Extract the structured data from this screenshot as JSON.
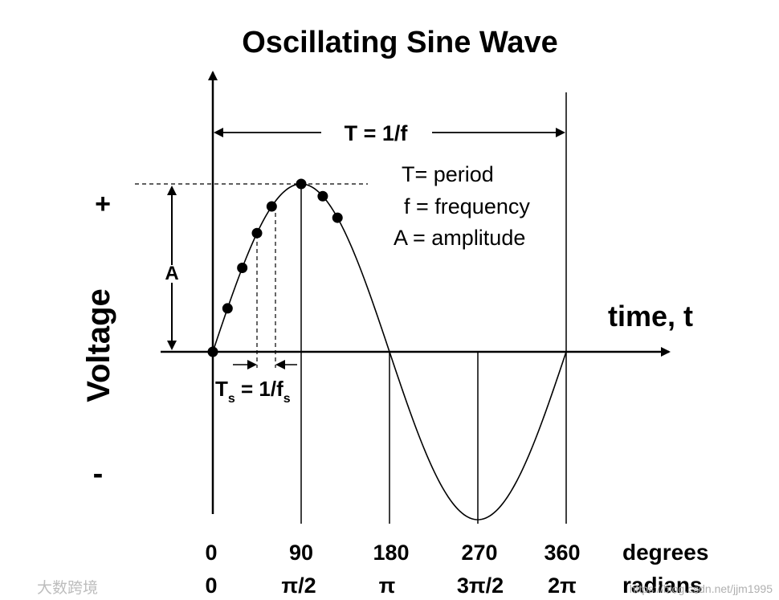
{
  "title": "Oscillating Sine Wave",
  "period_label": "T = 1/f",
  "legend": [
    "T= period",
    "f = frequency",
    "A = amplitude"
  ],
  "amplitude_label": "A",
  "axis": {
    "y_label": "Voltage",
    "plus": "+",
    "minus": "-",
    "x_label": "time, t"
  },
  "sampling_label": {
    "T": "T",
    "T_sub": "s",
    "eq": " = 1/f",
    "f_sub": "s"
  },
  "degrees": {
    "label": "degrees",
    "ticks": [
      "0",
      "90",
      "180",
      "270",
      "360"
    ]
  },
  "radians": {
    "label": "radians",
    "ticks": [
      "0",
      "π/2",
      "π",
      "3π/2",
      "2π"
    ]
  },
  "samples_deg": [
    0,
    15,
    30,
    45,
    60,
    90,
    112,
    127
  ],
  "watermark_left": "大数跨境",
  "watermark_right": "https://blog.csdn.net/jjm1995"
}
